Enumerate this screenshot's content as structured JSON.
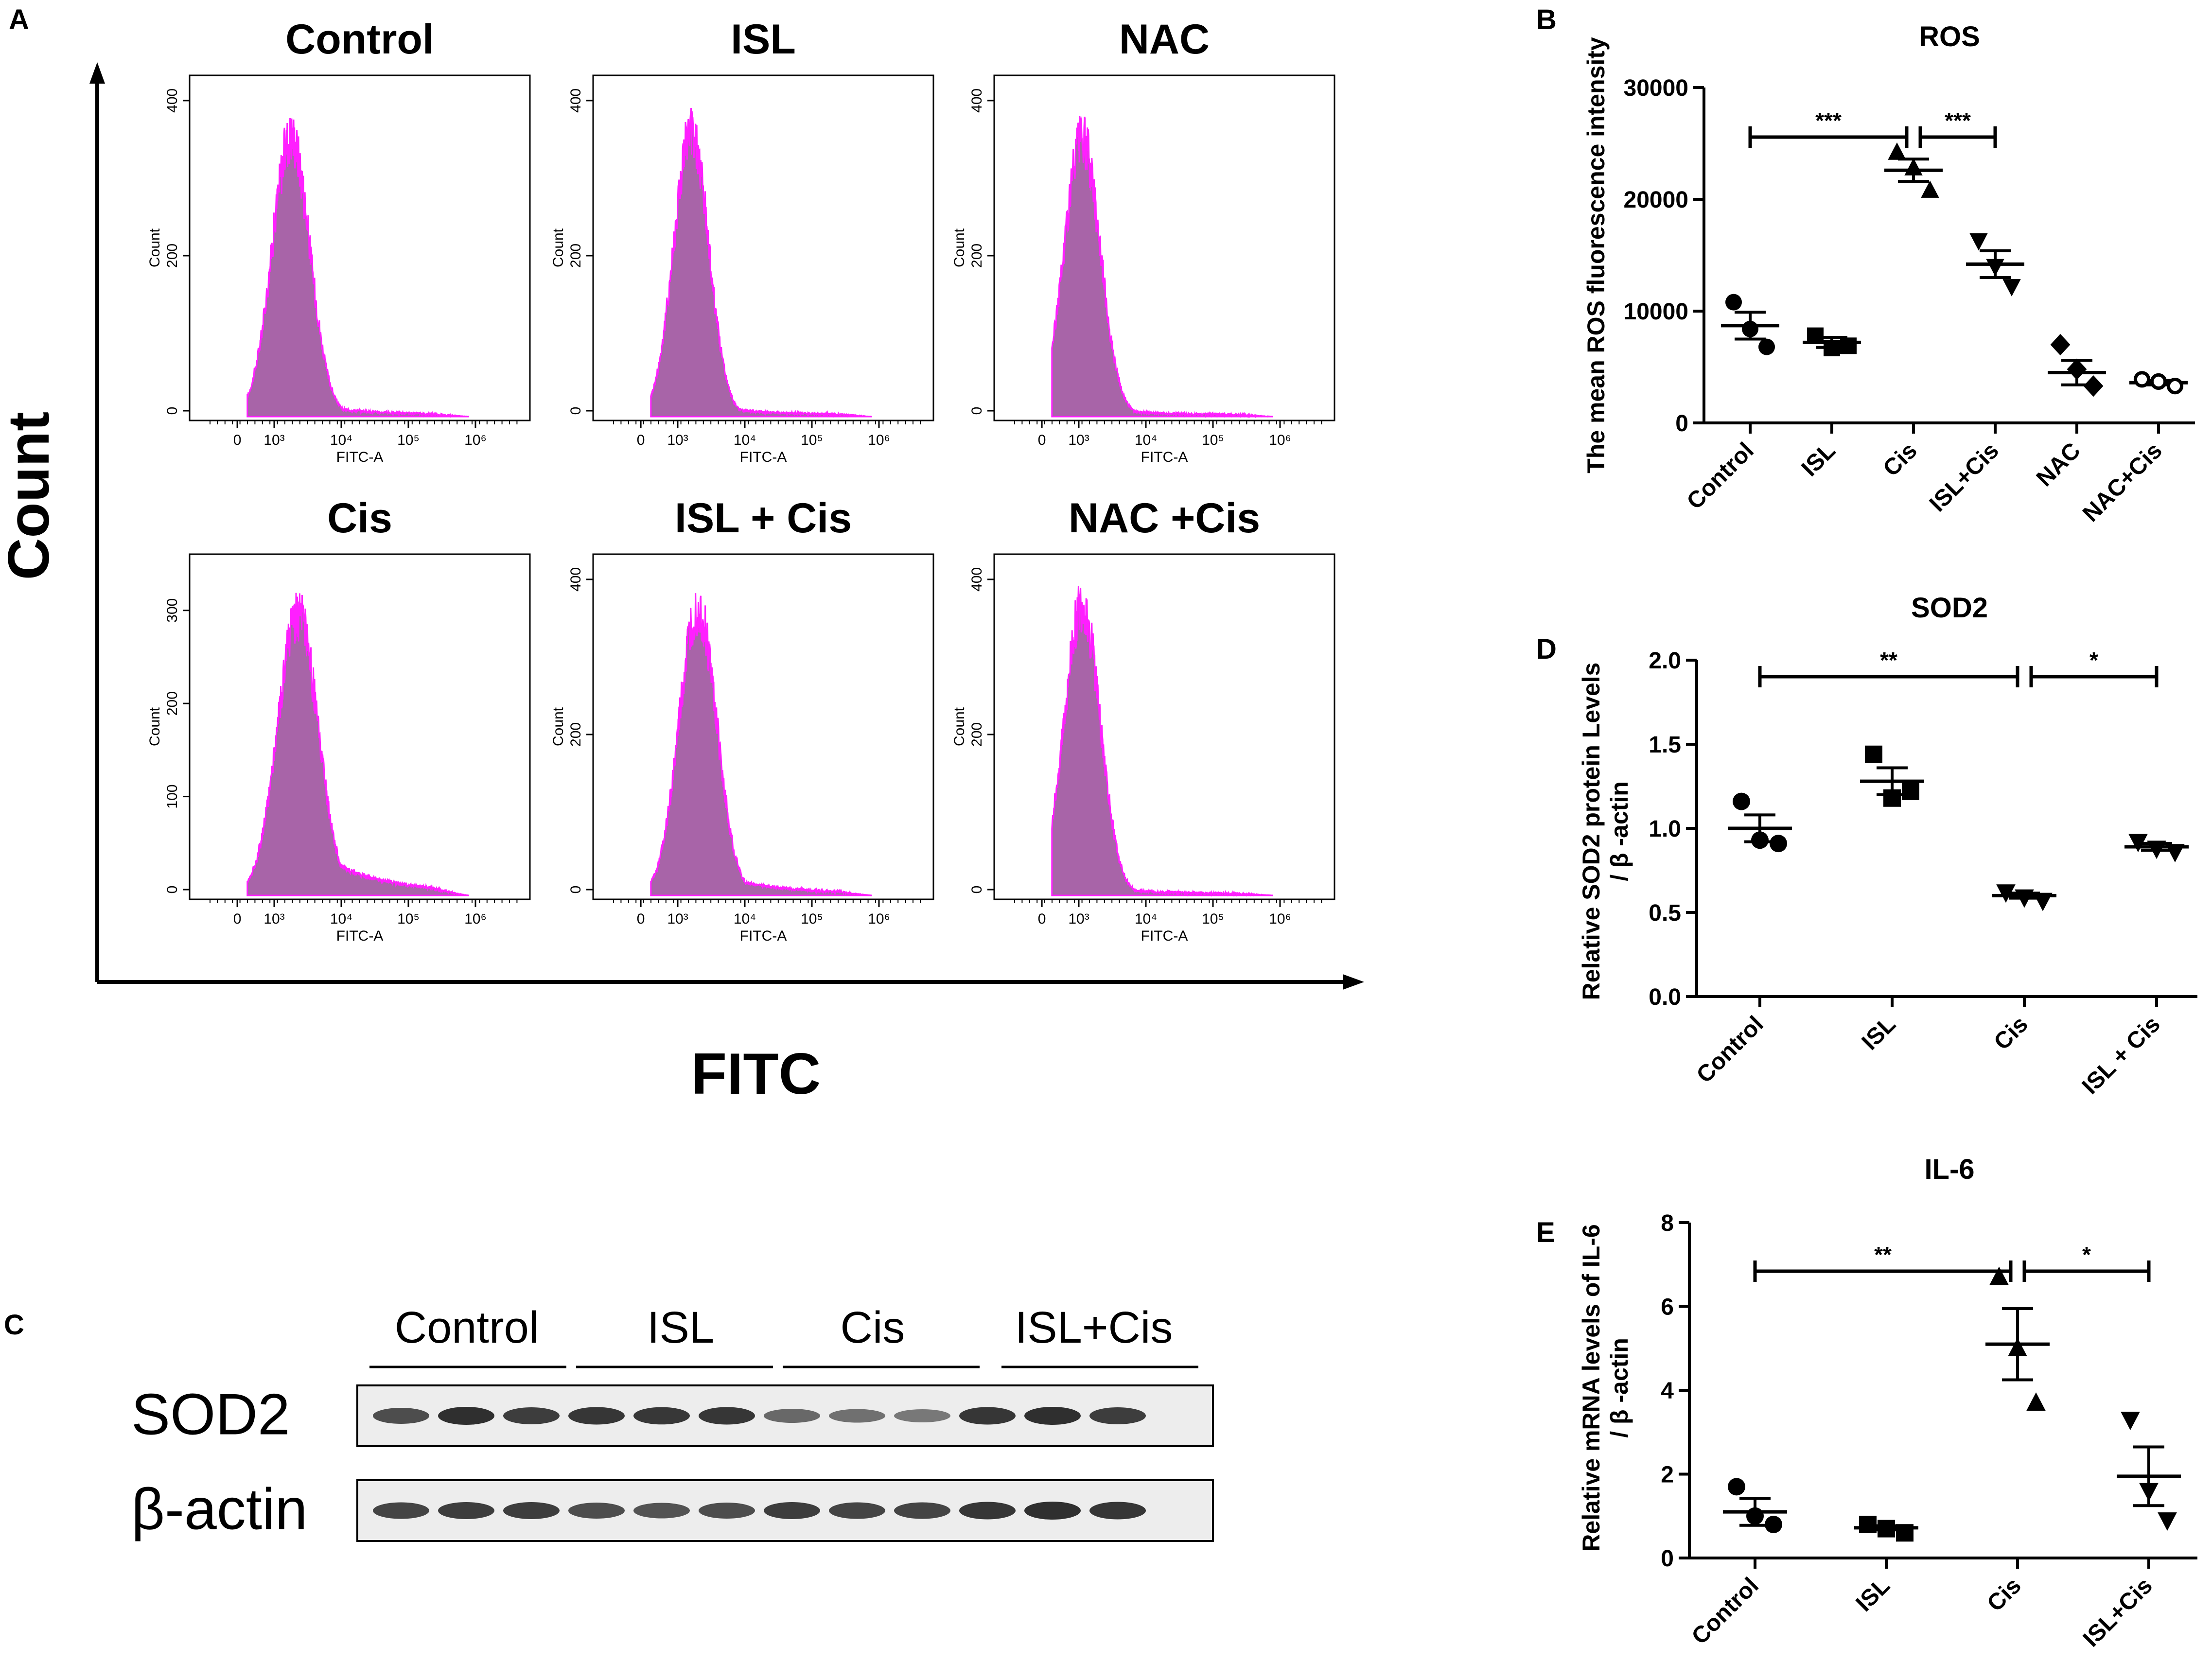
{
  "figure": {
    "panel_labels": [
      "A",
      "B",
      "C",
      "D",
      "E"
    ]
  },
  "colors": {
    "histogram_fill": "#a864a8",
    "histogram_line": "#ff1fff",
    "axis": "#000000",
    "text": "#000000",
    "blot_background": "#ededed",
    "band": "#1c1c1c"
  },
  "panel_a": {
    "y_title": "Count",
    "x_title": "FITC",
    "histograms": [
      {
        "title": "Control",
        "y_label": "Count",
        "x_label": "FITC-A",
        "y_ticks": [
          0,
          200,
          400
        ],
        "y_max": 420,
        "peak_decade": 3.25,
        "peak": 360,
        "spread": 0.28,
        "tail": 0.05
      },
      {
        "title": "ISL",
        "y_label": "Count",
        "x_label": "FITC-A",
        "y_ticks": [
          0,
          200,
          400
        ],
        "y_max": 420,
        "peak_decade": 3.2,
        "peak": 365,
        "spread": 0.26,
        "tail": 0.04
      },
      {
        "title": "NAC",
        "y_label": "Count",
        "x_label": "FITC-A",
        "y_ticks": [
          0,
          200,
          400
        ],
        "y_max": 420,
        "peak_decade": 3.05,
        "peak": 355,
        "spread": 0.27,
        "tail": 0.03
      },
      {
        "title": "Cis",
        "y_label": "Count",
        "x_label": "FITC-A",
        "y_ticks": [
          0,
          100,
          200,
          300
        ],
        "y_max": 350,
        "peak_decade": 3.35,
        "peak": 300,
        "spread": 0.3,
        "tail": 0.2
      },
      {
        "title": "ISL + Cis",
        "y_label": "Count",
        "x_label": "FITC-A",
        "y_ticks": [
          0,
          200,
          400
        ],
        "y_max": 420,
        "peak_decade": 3.3,
        "peak": 365,
        "spread": 0.28,
        "tail": 0.09
      },
      {
        "title": "NAC +Cis",
        "y_label": "Count",
        "x_label": "FITC-A",
        "y_ticks": [
          0,
          200,
          400
        ],
        "y_max": 420,
        "peak_decade": 3.05,
        "peak": 370,
        "spread": 0.27,
        "tail": 0.03
      }
    ],
    "x_ticks": [
      "0",
      "10³",
      "10⁴",
      "10⁵",
      "10⁶"
    ]
  },
  "panel_c": {
    "groups": [
      "Control",
      "ISL",
      "Cis",
      "ISL+Cis"
    ],
    "rows": [
      {
        "label": "SOD2",
        "intensities": [
          0.75,
          0.95,
          0.85,
          0.9,
          0.88,
          0.9,
          0.55,
          0.5,
          0.45,
          0.9,
          0.95,
          0.85
        ]
      },
      {
        "label": "β-actin",
        "intensities": [
          0.8,
          0.85,
          0.85,
          0.75,
          0.7,
          0.75,
          0.85,
          0.8,
          0.8,
          0.9,
          0.95,
          0.9
        ]
      }
    ]
  },
  "chart_data": [
    {
      "panel": "B",
      "type": "scatter",
      "title": "ROS",
      "xlabel": "",
      "ylabel": "The mean ROS fluorescence intensity",
      "categories": [
        "Control",
        "ISL",
        "Cis",
        "ISL+Cis",
        "NAC",
        "NAC+Cis"
      ],
      "markers": [
        "circle",
        "square",
        "triangle-up",
        "triangle-down",
        "diamond",
        "circle-open"
      ],
      "points": [
        [
          10800,
          8400,
          6800
        ],
        [
          7800,
          6700,
          6900
        ],
        [
          24200,
          22800,
          20800
        ],
        [
          16300,
          14000,
          12200
        ],
        [
          7000,
          4800,
          3300
        ],
        [
          3900,
          3700,
          3300
        ]
      ],
      "means": [
        8700,
        7200,
        22600,
        14200,
        4500,
        3600
      ],
      "sem": [
        1200,
        450,
        1000,
        1200,
        1100,
        200
      ],
      "ylim": [
        0,
        30000
      ],
      "y_ticks": [
        "0",
        "10000",
        "20000",
        "30000"
      ],
      "significance": [
        {
          "from": "Control",
          "to": "Cis",
          "label": "***"
        },
        {
          "from": "Cis",
          "to": "ISL+Cis",
          "label": "***"
        }
      ]
    },
    {
      "panel": "D",
      "type": "scatter",
      "title": "SOD2",
      "xlabel": "",
      "ylabel": "Relative SOD2  protein Levels / β -actin",
      "ylabel_lines": [
        "Relative SOD2  protein Levels",
        "/ β -actin"
      ],
      "categories": [
        "Control",
        "ISL",
        "Cis",
        "ISL + Cis"
      ],
      "markers": [
        "circle",
        "square",
        "triangle-down",
        "triangle-down"
      ],
      "points": [
        [
          1.16,
          0.93,
          0.91
        ],
        [
          1.44,
          1.18,
          1.22
        ],
        [
          0.62,
          0.59,
          0.57
        ],
        [
          0.92,
          0.88,
          0.86
        ]
      ],
      "means": [
        1.0,
        1.28,
        0.6,
        0.89
      ],
      "sem": [
        0.08,
        0.08,
        0.015,
        0.02
      ],
      "ylim": [
        0,
        2.0
      ],
      "y_ticks": [
        "0.0",
        "0.5",
        "1.0",
        "1.5",
        "2.0"
      ],
      "significance": [
        {
          "from": "Control",
          "to": "Cis",
          "label": "**"
        },
        {
          "from": "Cis",
          "to": "ISL + Cis",
          "label": "*"
        }
      ]
    },
    {
      "panel": "E",
      "type": "scatter",
      "title": "IL-6",
      "xlabel": "",
      "ylabel": "Relative mRNA levels of IL-6 / β -actin",
      "ylabel_lines": [
        "Relative mRNA levels of IL-6",
        "/ β -actin"
      ],
      "categories": [
        "Control",
        "ISL",
        "Cis",
        "ISL+Cis"
      ],
      "markers": [
        "circle",
        "square",
        "triangle-up",
        "triangle-down"
      ],
      "points": [
        [
          1.7,
          1.0,
          0.8
        ],
        [
          0.8,
          0.7,
          0.6
        ],
        [
          6.7,
          5.0,
          3.7
        ],
        [
          3.3,
          1.6,
          0.9
        ]
      ],
      "means": [
        1.1,
        0.72,
        5.1,
        1.95
      ],
      "sem": [
        0.32,
        0.05,
        0.85,
        0.7
      ],
      "ylim": [
        0,
        8
      ],
      "y_ticks": [
        "0",
        "2",
        "4",
        "6",
        "8"
      ],
      "significance": [
        {
          "from": "Control",
          "to": "Cis",
          "label": "**"
        },
        {
          "from": "Cis",
          "to": "ISL+Cis",
          "label": "*"
        }
      ]
    }
  ]
}
